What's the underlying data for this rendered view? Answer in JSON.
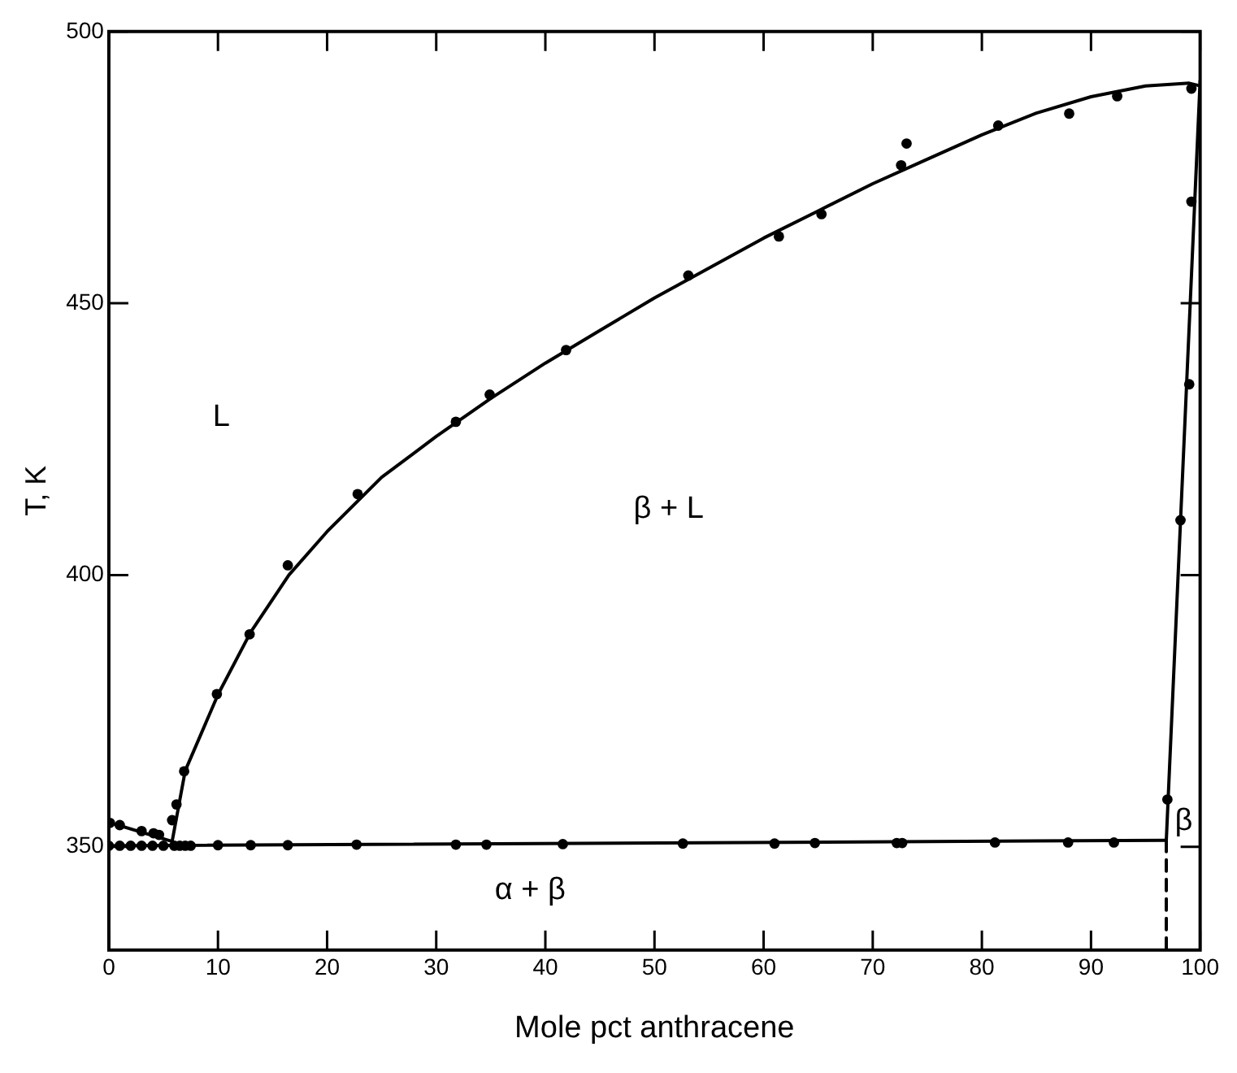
{
  "chart_data": {
    "type": "scatter",
    "xlabel": "Mole pct anthracene",
    "ylabel": "T, K",
    "xlim": [
      0,
      100
    ],
    "ylim": [
      331,
      500
    ],
    "xticks": [
      0,
      10,
      20,
      30,
      40,
      50,
      60,
      70,
      80,
      90,
      100
    ],
    "yticks": [
      350,
      400,
      450,
      500
    ],
    "grid": false,
    "legend": false,
    "series": [
      {
        "color": "#000000",
        "marker": "circle",
        "x": [
          0,
          1,
          2,
          3,
          4,
          5,
          6,
          6.5,
          7,
          7.5,
          10,
          13,
          16.4,
          22.7,
          31.8,
          34.6,
          41.6,
          52.6,
          61,
          64.7,
          72.2,
          72.7,
          81.2,
          87.9,
          92.1
        ],
        "values": [
          350.2,
          350.2,
          350.2,
          350.2,
          350.2,
          350.2,
          350.2,
          350.2,
          350.2,
          350.2,
          350.3,
          350.3,
          350.3,
          350.4,
          350.4,
          350.4,
          350.5,
          350.6,
          350.6,
          350.7,
          350.7,
          350.7,
          350.8,
          350.8,
          350.8
        ]
      },
      {
        "color": "#000000",
        "marker": "circle",
        "x": [
          0.1,
          1,
          3,
          4.1,
          4.6,
          5.8,
          6.2,
          6.9,
          9.9,
          12.9,
          16.4,
          22.8,
          31.8,
          34.9,
          41.9,
          53.1,
          61.4,
          65.3,
          72.6,
          73.1,
          81.5,
          88,
          92.4,
          99.2,
          99.2,
          99,
          98.2,
          97
        ],
        "values": [
          354.4,
          354,
          352.9,
          352.5,
          352.2,
          354.9,
          357.8,
          363.9,
          378.1,
          389.1,
          401.8,
          414.9,
          428.2,
          433.2,
          441.4,
          455.1,
          462.3,
          466.4,
          475.4,
          479.4,
          482.7,
          484.9,
          488.1,
          489.5,
          468.7,
          435.1,
          410.1,
          358.7
        ]
      },
      {
        "type": "line",
        "color": "#000000",
        "marker": "none",
        "line_style": "solid",
        "x": [
          0,
          96.9
        ],
        "values": [
          350.2,
          351.2
        ]
      },
      {
        "type": "line",
        "color": "#000000",
        "marker": "none",
        "line_style": "solid",
        "x": [
          0,
          5.8
        ],
        "values": [
          354.5,
          351
        ]
      },
      {
        "type": "line",
        "color": "#000000",
        "marker": "none",
        "line_style": "solid",
        "x": [
          5.8,
          7,
          10,
          13,
          16.5,
          20,
          25,
          30,
          35,
          40,
          45,
          50,
          55,
          60,
          65,
          70,
          75,
          80,
          85,
          90,
          95,
          99,
          100
        ],
        "values": [
          351,
          364,
          378,
          389.5,
          400,
          408,
          418,
          425.5,
          432.5,
          439,
          445,
          451,
          456.5,
          462,
          467,
          472,
          476.5,
          481,
          485,
          488,
          490,
          490.5,
          490
        ]
      },
      {
        "type": "line",
        "color": "#000000",
        "marker": "none",
        "line_style": "solid",
        "x": [
          96.9,
          100
        ],
        "values": [
          351.2,
          491
        ]
      },
      {
        "type": "line",
        "color": "#000000",
        "marker": "none",
        "line_style": "dashed",
        "x": [
          96.9,
          96.9
        ],
        "values": [
          351.2,
          331
        ]
      }
    ],
    "annotations": [
      "L",
      "β + L",
      "α + β",
      "β"
    ]
  }
}
